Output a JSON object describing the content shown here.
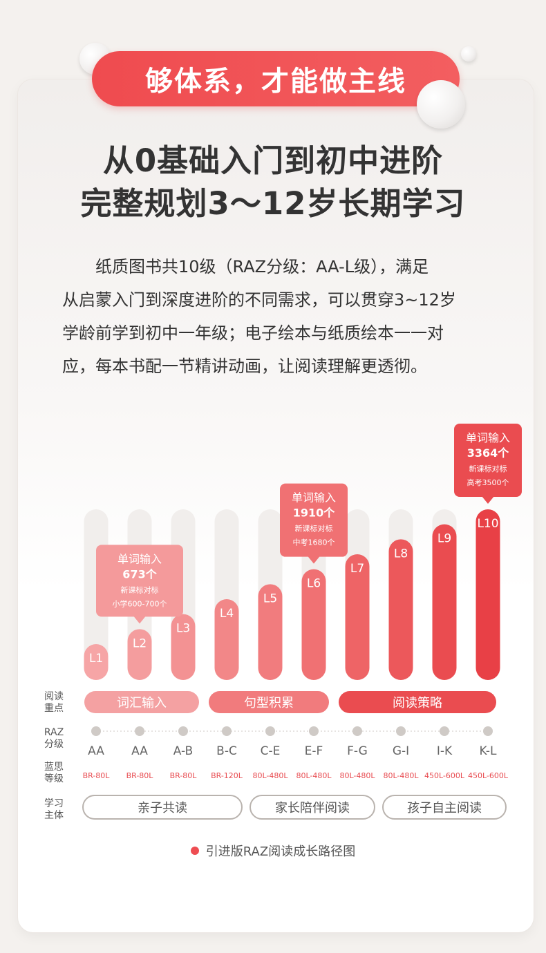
{
  "banner": {
    "title": "够体系，才能做主线"
  },
  "headline": {
    "line1": "从0基础入门到初中进阶",
    "line2": "完整规划3～12岁长期学习"
  },
  "description": {
    "lines": [
      "　　纸质图书共10级（RAZ分级：AA-L级），满足",
      "从启蒙入门到深度进阶的不同需求，可以贯穿3~12岁",
      "学龄前学到初中一年级；电子绘本与纸质绘本一一对",
      "应，每本书配一节精讲动画，让阅读理解更透彻。"
    ]
  },
  "chart_data": {
    "type": "bar",
    "categories": [
      "L1",
      "L2",
      "L3",
      "L4",
      "L5",
      "L6",
      "L7",
      "L8",
      "L9",
      "L10"
    ],
    "values": [
      1,
      2,
      3,
      4,
      5,
      6,
      7,
      8,
      9,
      10
    ],
    "ylim": [
      0,
      10
    ],
    "xlabel": "",
    "ylabel": "",
    "callouts": [
      {
        "level": "L2",
        "title": "单词输入",
        "count": "673个",
        "std": "新课标对标",
        "ref": "小学600-700个"
      },
      {
        "level": "L6",
        "title": "单词输入",
        "count": "1910个",
        "std": "新课标对标",
        "ref": "中考1680个"
      },
      {
        "level": "L10",
        "title": "单词输入",
        "count": "3364个",
        "std": "新课标对标",
        "ref": "高考3500个"
      }
    ],
    "colors": [
      "#f6a5a6",
      "#f49d9e",
      "#f39293",
      "#f28788",
      "#f17c7e",
      "#f07173",
      "#ee6466",
      "#ec585b",
      "#ea4c50",
      "#e84046"
    ]
  },
  "rows": {
    "focus": {
      "label_l1": "阅读",
      "label_l2": "重点",
      "items": [
        "词汇输入",
        "句型积累",
        "阅读策略"
      ]
    },
    "raz": {
      "label_l1": "RAZ",
      "label_l2": "分级",
      "items": [
        "AA",
        "AA",
        "A-B",
        "B-C",
        "C-E",
        "E-F",
        "F-G",
        "G-I",
        "I-K",
        "K-L"
      ]
    },
    "lexile": {
      "label_l1": "蓝思",
      "label_l2": "等级",
      "items": [
        "BR-80L",
        "BR-80L",
        "BR-80L",
        "BR-120L",
        "80L-480L",
        "80L-480L",
        "80L-480L",
        "80L-480L",
        "450L-600L",
        "450L-600L"
      ]
    },
    "study": {
      "label_l1": "学习",
      "label_l2": "主体",
      "items": [
        "亲子共读",
        "家长陪伴阅读",
        "孩子自主阅读"
      ]
    }
  },
  "caption": "引进版RAZ阅读成长路径图"
}
